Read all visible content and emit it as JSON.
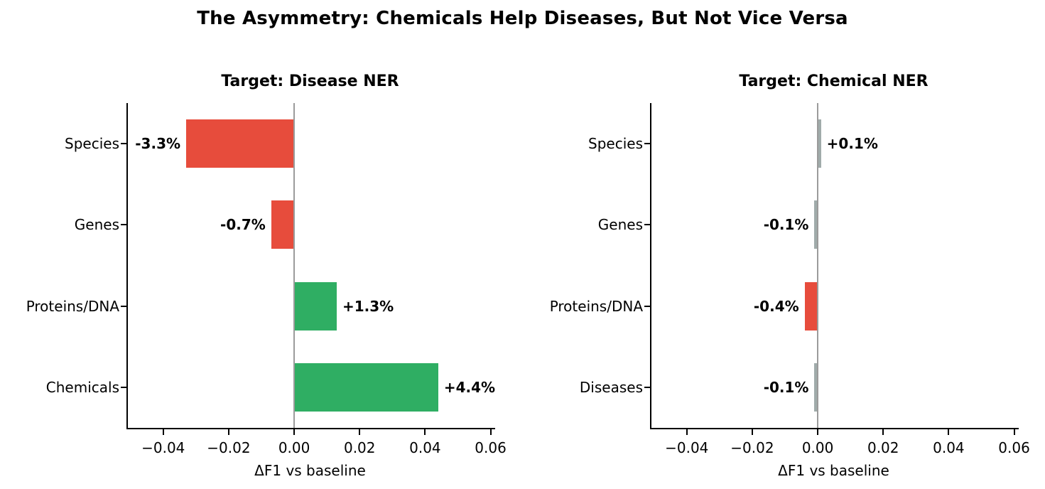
{
  "title": "The Asymmetry: Chemicals Help Diseases, But Not Vice Versa",
  "colors": {
    "positive": "#2fae63",
    "negative": "#e74c3c",
    "neutral": "#a0abaa",
    "zero_line": "#9b9b9b",
    "axis": "#000000"
  },
  "axis": {
    "tick_values": [
      -0.04,
      -0.02,
      0.0,
      0.02,
      0.04,
      0.06
    ],
    "tick_labels": [
      "−0.04",
      "−0.02",
      "0.00",
      "0.02",
      "0.04",
      "0.06"
    ],
    "xlim": [
      -0.0508,
      0.0614
    ],
    "grid": false
  },
  "chart_data": [
    {
      "type": "bar",
      "orientation": "horizontal",
      "title": "Target: Disease NER",
      "categories": [
        "Species",
        "Genes",
        "Proteins/DNA",
        "Chemicals"
      ],
      "values": [
        -0.033,
        -0.007,
        0.013,
        0.044
      ],
      "labels": [
        "-3.3%",
        "-0.7%",
        "+1.3%",
        "+4.4%"
      ],
      "bar_colors": [
        "negative",
        "negative",
        "positive",
        "positive"
      ],
      "xlabel": "ΔF1 vs baseline",
      "xlim": [
        -0.0508,
        0.0614
      ]
    },
    {
      "type": "bar",
      "orientation": "horizontal",
      "title": "Target: Chemical NER",
      "categories": [
        "Species",
        "Genes",
        "Proteins/DNA",
        "Diseases"
      ],
      "values": [
        0.001,
        -0.001,
        -0.004,
        -0.001
      ],
      "labels": [
        "+0.1%",
        "-0.1%",
        "-0.4%",
        "-0.1%"
      ],
      "bar_colors": [
        "neutral",
        "neutral",
        "negative",
        "neutral"
      ],
      "xlabel": "ΔF1 vs baseline",
      "xlim": [
        -0.0508,
        0.0614
      ]
    }
  ]
}
